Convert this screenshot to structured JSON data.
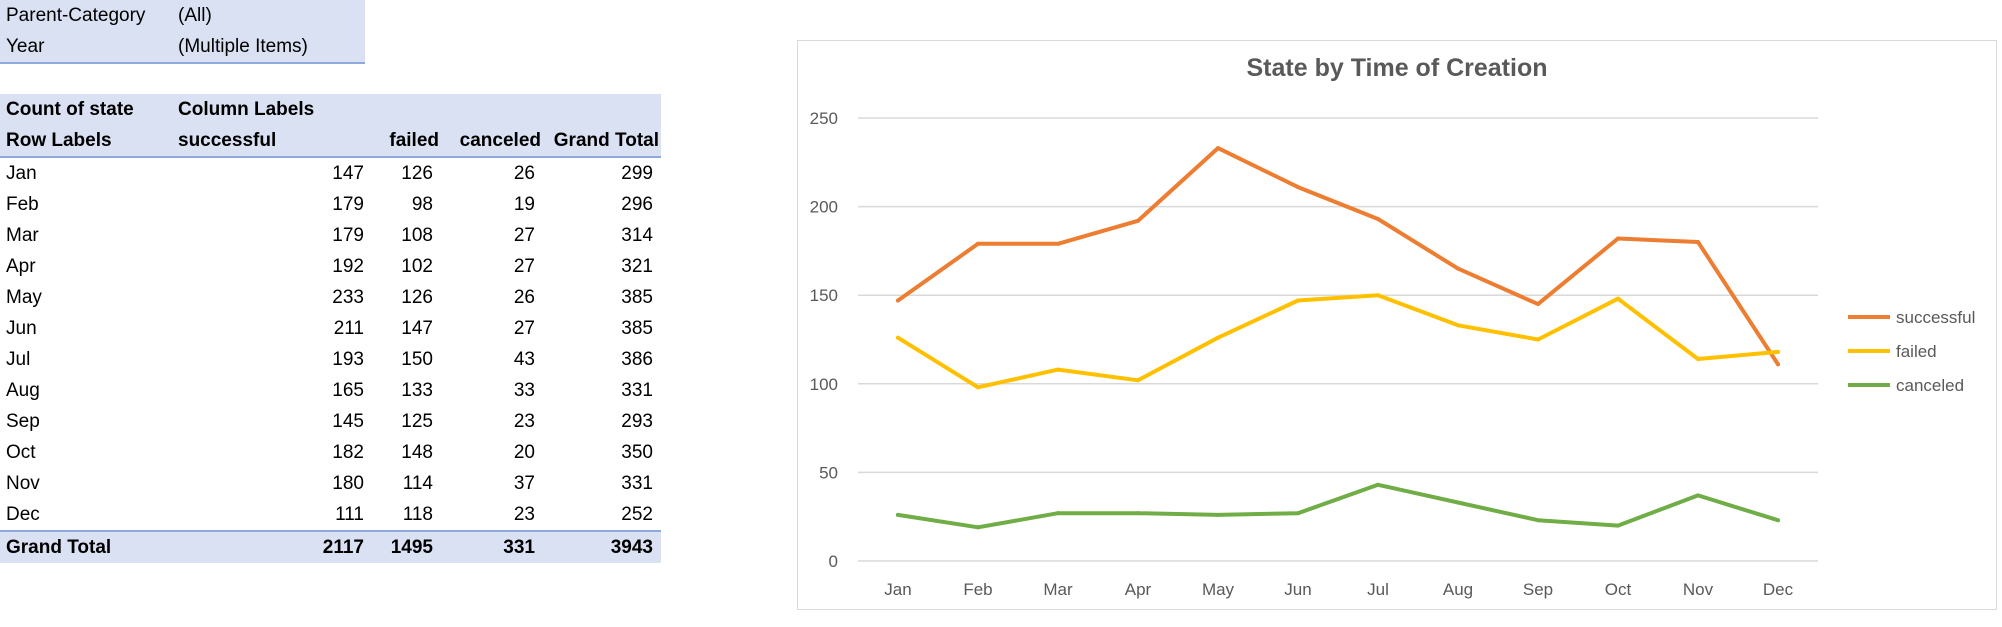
{
  "filters": [
    {
      "label": "Parent-Category",
      "value": "(All)"
    },
    {
      "label": "Year",
      "value": "(Multiple Items)"
    }
  ],
  "pivot": {
    "count_label": "Count of state",
    "column_labels": "Column Labels",
    "row_labels": "Row Labels",
    "columns": [
      "successful",
      "failed",
      "canceled",
      "Grand Total"
    ],
    "rows": [
      {
        "label": "Jan",
        "values": [
          "147",
          "126",
          "26",
          "299"
        ]
      },
      {
        "label": "Feb",
        "values": [
          "179",
          "98",
          "19",
          "296"
        ]
      },
      {
        "label": "Mar",
        "values": [
          "179",
          "108",
          "27",
          "314"
        ]
      },
      {
        "label": "Apr",
        "values": [
          "192",
          "102",
          "27",
          "321"
        ]
      },
      {
        "label": "May",
        "values": [
          "233",
          "126",
          "26",
          "385"
        ]
      },
      {
        "label": "Jun",
        "values": [
          "211",
          "147",
          "27",
          "385"
        ]
      },
      {
        "label": "Jul",
        "values": [
          "193",
          "150",
          "43",
          "386"
        ]
      },
      {
        "label": "Aug",
        "values": [
          "165",
          "133",
          "33",
          "331"
        ]
      },
      {
        "label": "Sep",
        "values": [
          "145",
          "125",
          "23",
          "293"
        ]
      },
      {
        "label": "Oct",
        "values": [
          "182",
          "148",
          "20",
          "350"
        ]
      },
      {
        "label": "Nov",
        "values": [
          "180",
          "114",
          "37",
          "331"
        ]
      },
      {
        "label": "Dec",
        "values": [
          "111",
          "118",
          "23",
          "252"
        ]
      }
    ],
    "total": {
      "label": "Grand Total",
      "values": [
        "2117",
        "1495",
        "331",
        "3943"
      ]
    }
  },
  "chart_data": {
    "type": "line",
    "title": "State by Time of Creation",
    "xlabel": "",
    "ylabel": "",
    "categories": [
      "Jan",
      "Feb",
      "Mar",
      "Apr",
      "May",
      "Jun",
      "Jul",
      "Aug",
      "Sep",
      "Oct",
      "Nov",
      "Dec"
    ],
    "ylim": [
      0,
      250
    ],
    "yticks": [
      0,
      50,
      100,
      150,
      200,
      250
    ],
    "grid": true,
    "legend_position": "right",
    "series": [
      {
        "name": "successful",
        "color": "#ed7d31",
        "values": [
          147,
          179,
          179,
          192,
          233,
          211,
          193,
          165,
          145,
          182,
          180,
          111
        ]
      },
      {
        "name": "failed",
        "color": "#ffc000",
        "values": [
          126,
          98,
          108,
          102,
          126,
          147,
          150,
          133,
          125,
          148,
          114,
          118
        ]
      },
      {
        "name": "canceled",
        "color": "#70ad47",
        "values": [
          26,
          19,
          27,
          27,
          26,
          27,
          43,
          33,
          23,
          20,
          37,
          23
        ]
      }
    ]
  }
}
